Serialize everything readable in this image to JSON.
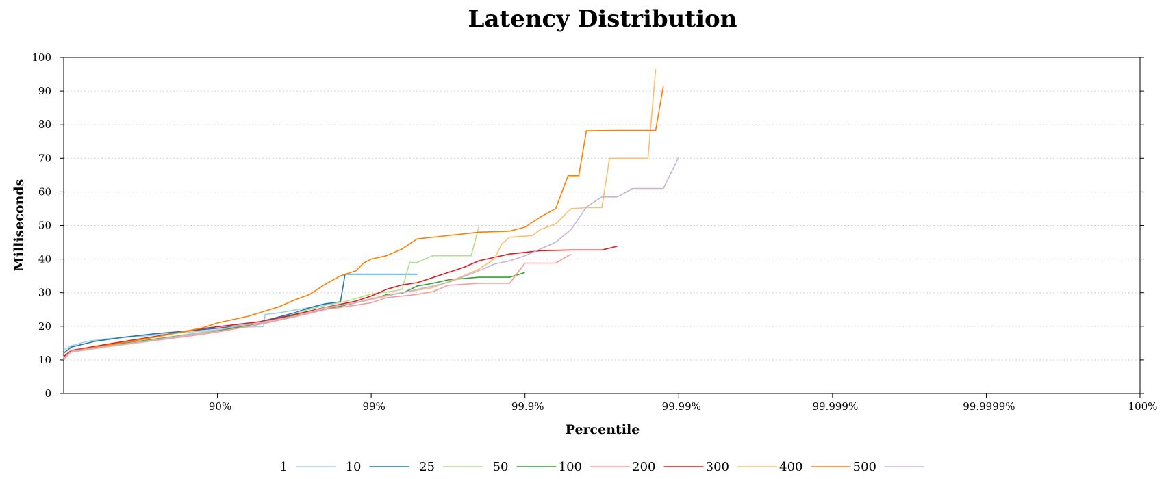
{
  "chart_data": {
    "type": "line",
    "title": "Latency Distribution",
    "xlabel": "Percentile",
    "ylabel": "Milliseconds",
    "x_scale": "percentile-log (nines)",
    "xlim": [
      0,
      7
    ],
    "ylim": [
      0,
      100
    ],
    "y_ticks": [
      0,
      10,
      20,
      30,
      40,
      50,
      60,
      70,
      80,
      90,
      100
    ],
    "x_ticks": [
      {
        "value": 1,
        "label": "90%"
      },
      {
        "value": 2,
        "label": "99%"
      },
      {
        "value": 3,
        "label": "99.9%"
      },
      {
        "value": 4,
        "label": "99.99%"
      },
      {
        "value": 5,
        "label": "99.999%"
      },
      {
        "value": 6,
        "label": "99.9999%"
      },
      {
        "value": 7,
        "label": "100%"
      }
    ],
    "grid": "horizontal dotted",
    "legend_position": "bottom-center",
    "series": [
      {
        "name": "1",
        "color": "#a6cee3",
        "points": [
          [
            0,
            13
          ],
          [
            0.05,
            14.2
          ],
          [
            0.15,
            15.5
          ],
          [
            0.3,
            16.4
          ],
          [
            0.5,
            17.0
          ],
          [
            0.7,
            17.8
          ],
          [
            0.9,
            18.6
          ],
          [
            1.1,
            19.3
          ],
          [
            1.2,
            19.8
          ],
          [
            1.3,
            19.9
          ],
          [
            1.31,
            23.5
          ],
          [
            1.4,
            24.0
          ],
          [
            1.5,
            24.8
          ],
          [
            1.6,
            25.6
          ],
          [
            1.7,
            26.6
          ],
          [
            1.8,
            27.0
          ]
        ]
      },
      {
        "name": "10",
        "color": "#1f78b4",
        "points": [
          [
            0,
            12
          ],
          [
            0.05,
            13.8
          ],
          [
            0.2,
            15.5
          ],
          [
            0.4,
            16.8
          ],
          [
            0.6,
            17.8
          ],
          [
            0.8,
            18.6
          ],
          [
            1.0,
            19.4
          ],
          [
            1.2,
            20.5
          ],
          [
            1.35,
            22.2
          ],
          [
            1.5,
            24.0
          ],
          [
            1.6,
            25.5
          ],
          [
            1.7,
            26.7
          ],
          [
            1.8,
            27.3
          ],
          [
            1.83,
            35.5
          ],
          [
            2.0,
            35.5
          ],
          [
            2.3,
            35.5
          ]
        ]
      },
      {
        "name": "25",
        "color": "#b2df8a",
        "points": [
          [
            0,
            11
          ],
          [
            0.05,
            12.9
          ],
          [
            0.3,
            14.5
          ],
          [
            0.6,
            16.3
          ],
          [
            0.9,
            18.2
          ],
          [
            1.1,
            19.6
          ],
          [
            1.25,
            20.3
          ],
          [
            1.4,
            22.3
          ],
          [
            1.55,
            24.5
          ],
          [
            1.7,
            26.2
          ],
          [
            1.85,
            27.6
          ],
          [
            2.0,
            29.6
          ],
          [
            2.15,
            30.5
          ],
          [
            2.2,
            31.0
          ],
          [
            2.25,
            39.0
          ],
          [
            2.3,
            39.0
          ],
          [
            2.4,
            41.0
          ],
          [
            2.55,
            41.0
          ],
          [
            2.65,
            41.0
          ],
          [
            2.7,
            49.5
          ]
        ]
      },
      {
        "name": "50",
        "color": "#33a02c",
        "points": [
          [
            0,
            11
          ],
          [
            0.05,
            12.6
          ],
          [
            0.3,
            14.3
          ],
          [
            0.6,
            16.2
          ],
          [
            0.9,
            18.0
          ],
          [
            1.1,
            19.5
          ],
          [
            1.3,
            21.2
          ],
          [
            1.45,
            22.8
          ],
          [
            1.6,
            24.0
          ],
          [
            1.8,
            26.0
          ],
          [
            2.0,
            28.0
          ],
          [
            2.1,
            29.4
          ],
          [
            2.2,
            29.8
          ],
          [
            2.3,
            32.0
          ],
          [
            2.4,
            32.8
          ],
          [
            2.5,
            33.8
          ],
          [
            2.7,
            34.6
          ],
          [
            2.9,
            34.6
          ],
          [
            3.0,
            36.0
          ]
        ]
      },
      {
        "name": "100",
        "color": "#fb9a99",
        "points": [
          [
            0,
            10.5
          ],
          [
            0.05,
            12.3
          ],
          [
            0.3,
            14.0
          ],
          [
            0.6,
            15.8
          ],
          [
            0.9,
            17.6
          ],
          [
            1.1,
            19.1
          ],
          [
            1.3,
            20.8
          ],
          [
            1.5,
            22.8
          ],
          [
            1.7,
            25.0
          ],
          [
            1.9,
            26.3
          ],
          [
            2.0,
            27.0
          ],
          [
            2.1,
            28.5
          ],
          [
            2.3,
            29.5
          ],
          [
            2.4,
            30.3
          ],
          [
            2.5,
            32.2
          ],
          [
            2.7,
            32.8
          ],
          [
            2.9,
            32.8
          ],
          [
            3.0,
            38.8
          ],
          [
            3.1,
            38.8
          ],
          [
            3.2,
            38.8
          ],
          [
            3.3,
            41.5
          ]
        ]
      },
      {
        "name": "200",
        "color": "#e31a1c",
        "points": [
          [
            0,
            11
          ],
          [
            0.05,
            12.8
          ],
          [
            0.3,
            14.8
          ],
          [
            0.6,
            17.0
          ],
          [
            0.9,
            19.3
          ],
          [
            1.1,
            20.4
          ],
          [
            1.3,
            21.5
          ],
          [
            1.5,
            23.5
          ],
          [
            1.7,
            25.6
          ],
          [
            1.9,
            27.5
          ],
          [
            2.0,
            29.0
          ],
          [
            2.1,
            31.0
          ],
          [
            2.2,
            32.3
          ],
          [
            2.3,
            33.0
          ],
          [
            2.4,
            34.5
          ],
          [
            2.5,
            36.0
          ],
          [
            2.6,
            37.5
          ],
          [
            2.7,
            39.5
          ],
          [
            2.8,
            40.5
          ],
          [
            2.9,
            41.5
          ],
          [
            3.0,
            42.0
          ],
          [
            3.1,
            42.5
          ],
          [
            3.3,
            42.7
          ],
          [
            3.5,
            42.7
          ],
          [
            3.6,
            43.8
          ]
        ]
      },
      {
        "name": "300",
        "color": "#fdbf6f",
        "points": [
          [
            0,
            10.5
          ],
          [
            0.05,
            12.5
          ],
          [
            0.3,
            14.0
          ],
          [
            0.6,
            16.0
          ],
          [
            0.9,
            18.0
          ],
          [
            1.1,
            19.8
          ],
          [
            1.3,
            21.3
          ],
          [
            1.5,
            23.0
          ],
          [
            1.7,
            25.5
          ],
          [
            1.9,
            27.0
          ],
          [
            2.0,
            28.3
          ],
          [
            2.2,
            30.0
          ],
          [
            2.4,
            31.5
          ],
          [
            2.6,
            35.0
          ],
          [
            2.7,
            37.0
          ],
          [
            2.8,
            40.0
          ],
          [
            2.85,
            44.5
          ],
          [
            2.9,
            46.5
          ],
          [
            3.05,
            47.0
          ],
          [
            3.1,
            48.8
          ],
          [
            3.2,
            50.5
          ],
          [
            3.3,
            55.0
          ],
          [
            3.4,
            55.3
          ],
          [
            3.5,
            55.3
          ],
          [
            3.55,
            70.0
          ],
          [
            3.7,
            70.0
          ],
          [
            3.8,
            70.0
          ],
          [
            3.85,
            96.5
          ]
        ]
      },
      {
        "name": "400",
        "color": "#ff7f00",
        "points": [
          [
            0,
            10
          ],
          [
            0.05,
            12.6
          ],
          [
            0.3,
            14.5
          ],
          [
            0.6,
            16.8
          ],
          [
            0.9,
            19.5
          ],
          [
            1.0,
            21.0
          ],
          [
            1.2,
            23.0
          ],
          [
            1.4,
            25.8
          ],
          [
            1.5,
            27.8
          ],
          [
            1.6,
            29.5
          ],
          [
            1.7,
            32.5
          ],
          [
            1.8,
            35.0
          ],
          [
            1.9,
            36.5
          ],
          [
            1.95,
            38.8
          ],
          [
            2.0,
            40.0
          ],
          [
            2.1,
            41.0
          ],
          [
            2.2,
            43.0
          ],
          [
            2.3,
            46.0
          ],
          [
            2.4,
            46.5
          ],
          [
            2.6,
            47.5
          ],
          [
            2.7,
            48.0
          ],
          [
            2.9,
            48.3
          ],
          [
            3.0,
            49.5
          ],
          [
            3.1,
            52.5
          ],
          [
            3.2,
            55.0
          ],
          [
            3.28,
            64.8
          ],
          [
            3.35,
            64.8
          ],
          [
            3.4,
            78.2
          ],
          [
            3.6,
            78.3
          ],
          [
            3.85,
            78.3
          ],
          [
            3.9,
            91.5
          ]
        ]
      },
      {
        "name": "500",
        "color": "#cab2d6",
        "points": [
          [
            0,
            10
          ],
          [
            0.05,
            12.5
          ],
          [
            0.3,
            14.2
          ],
          [
            0.6,
            16.0
          ],
          [
            0.9,
            18.0
          ],
          [
            1.1,
            19.8
          ],
          [
            1.3,
            21.2
          ],
          [
            1.5,
            23.0
          ],
          [
            1.7,
            25.5
          ],
          [
            1.9,
            27.0
          ],
          [
            2.1,
            29.0
          ],
          [
            2.3,
            31.0
          ],
          [
            2.5,
            33.0
          ],
          [
            2.7,
            36.5
          ],
          [
            2.8,
            38.5
          ],
          [
            2.9,
            39.5
          ],
          [
            3.0,
            41.0
          ],
          [
            3.1,
            43.0
          ],
          [
            3.2,
            45.0
          ],
          [
            3.3,
            48.8
          ],
          [
            3.4,
            55.5
          ],
          [
            3.5,
            58.5
          ],
          [
            3.6,
            58.5
          ],
          [
            3.7,
            61.0
          ],
          [
            3.9,
            61.0
          ],
          [
            4.0,
            70.3
          ]
        ]
      }
    ]
  }
}
